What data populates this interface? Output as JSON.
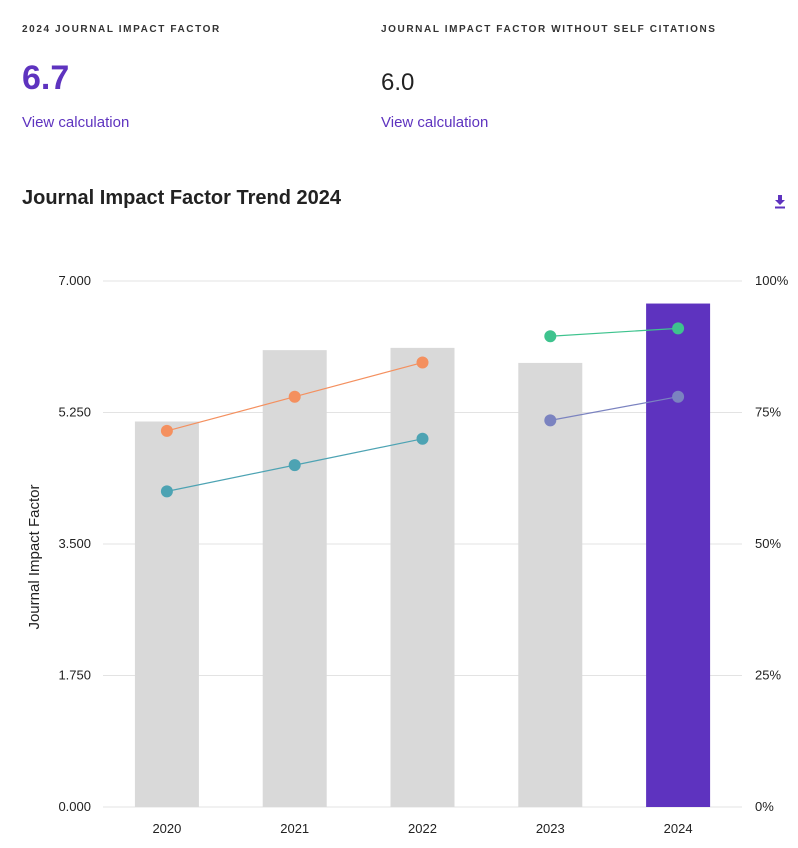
{
  "metrics": [
    {
      "label": "2024 JOURNAL IMPACT FACTOR",
      "value": "6.7",
      "link": "View calculation"
    },
    {
      "label": "JOURNAL IMPACT FACTOR WITHOUT SELF CITATIONS",
      "value": "6.0",
      "link": "View calculation"
    }
  ],
  "chart_title": "Journal Impact Factor Trend 2024",
  "icons": {
    "download": "download-icon"
  },
  "colors": {
    "bar": "#d9d9d9",
    "bar_highlight": "#5e33bf",
    "series_orange": "#f4905f",
    "series_teal": "#4da3b3",
    "series_green": "#3ec38e",
    "series_slate": "#7b83c0"
  },
  "chart_data": {
    "type": "bar",
    "categories": [
      "2020",
      "2021",
      "2022",
      "2023",
      "2024"
    ],
    "values": [
      5.13,
      6.08,
      6.11,
      5.91,
      6.7
    ],
    "highlight_category": "2024",
    "ylabel": "Journal Impact Factor",
    "ylim": [
      0,
      7
    ],
    "yticks": [
      "0.000",
      "1.750",
      "3.500",
      "5.250",
      "7.000"
    ],
    "y2lim": [
      0,
      100
    ],
    "y2ticks": [
      "0%",
      "25%",
      "50%",
      "75%",
      "100%"
    ],
    "grid": true,
    "series": [
      {
        "color_key": "series_orange",
        "axis": "right",
        "values": [
          71.5,
          78,
          84.5,
          null,
          null
        ]
      },
      {
        "color_key": "series_teal",
        "axis": "right",
        "values": [
          60,
          65,
          70,
          null,
          null
        ]
      },
      {
        "color_key": "series_green",
        "axis": "right",
        "values": [
          null,
          null,
          null,
          89.5,
          91
        ]
      },
      {
        "color_key": "series_slate",
        "axis": "right",
        "values": [
          null,
          null,
          null,
          73.5,
          78
        ]
      }
    ]
  }
}
